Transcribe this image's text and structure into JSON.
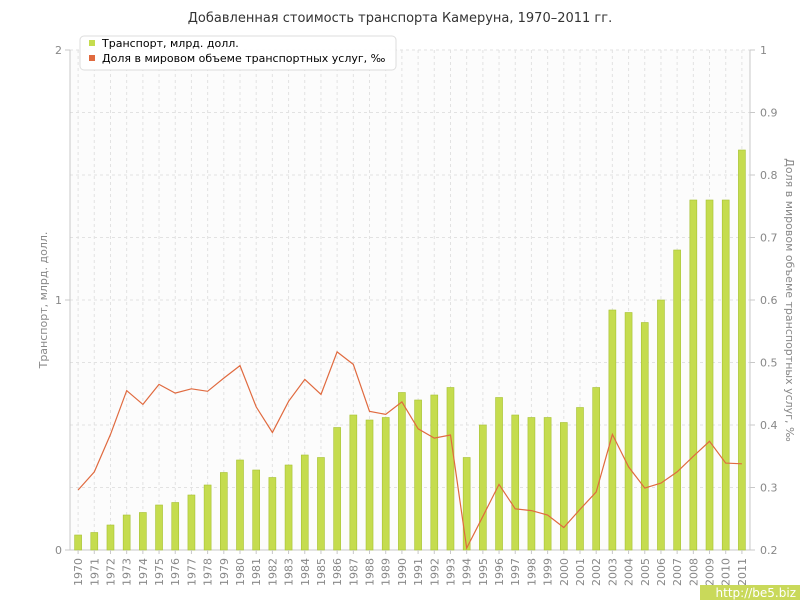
{
  "colors": {
    "bar": "#c5dc4e",
    "bar_edge": "#a6c132",
    "line": "#e06a3f",
    "grid": "#e2e2e2",
    "axis": "#c8c8c8",
    "watermark_bg": "#c9d95a"
  },
  "watermark": "http://be5.biz",
  "chart_data": {
    "type": "bar",
    "title": "Добавленная стоимость транспорта Камеруна, 1970–2011 гг.",
    "categories": [
      "1970",
      "1971",
      "1972",
      "1973",
      "1974",
      "1975",
      "1976",
      "1977",
      "1978",
      "1979",
      "1980",
      "1981",
      "1982",
      "1983",
      "1984",
      "1985",
      "1986",
      "1987",
      "1988",
      "1989",
      "1990",
      "1991",
      "1992",
      "1993",
      "1994",
      "1995",
      "1996",
      "1997",
      "1998",
      "1999",
      "2000",
      "2001",
      "2002",
      "2003",
      "2004",
      "2005",
      "2006",
      "2007",
      "2008",
      "2009",
      "2010",
      "2011"
    ],
    "ylabel_left": "Транспорт, млрд. долл.",
    "ylabel_right": "Доля в мировом объеме транспортных услуг, ‰",
    "ylim_left": [
      0,
      2
    ],
    "ylim_right": [
      0.2,
      1
    ],
    "yticks_left": [
      "0",
      "1",
      "2"
    ],
    "yticks_right": [
      "0.2",
      "0.3",
      "0.4",
      "0.5",
      "0.6",
      "0.7",
      "0.8",
      "0.9",
      "1"
    ],
    "grid": true,
    "legend_position": "top-left",
    "series": [
      {
        "name": "Транспорт, млрд. долл.",
        "type": "bar",
        "axis": "left",
        "values": [
          0.06,
          0.07,
          0.1,
          0.14,
          0.15,
          0.18,
          0.19,
          0.22,
          0.26,
          0.31,
          0.36,
          0.32,
          0.29,
          0.34,
          0.38,
          0.37,
          0.49,
          0.54,
          0.52,
          0.53,
          0.63,
          0.6,
          0.62,
          0.65,
          0.37,
          0.5,
          0.61,
          0.54,
          0.53,
          0.53,
          0.51,
          0.57,
          0.65,
          0.96,
          0.95,
          0.91,
          1.0,
          1.2,
          1.4,
          1.4,
          1.4,
          1.6
        ]
      },
      {
        "name": "Доля в мировом объеме транспортных услуг, ‰",
        "type": "line",
        "axis": "right",
        "values": [
          0.296,
          0.325,
          0.385,
          0.455,
          0.433,
          0.465,
          0.451,
          0.458,
          0.454,
          0.475,
          0.495,
          0.429,
          0.388,
          0.438,
          0.473,
          0.449,
          0.517,
          0.497,
          0.422,
          0.417,
          0.437,
          0.394,
          0.379,
          0.384,
          0.203,
          0.254,
          0.305,
          0.266,
          0.263,
          0.256,
          0.236,
          0.265,
          0.293,
          0.385,
          0.333,
          0.299,
          0.307,
          0.325,
          0.35,
          0.374,
          0.339,
          0.338
        ]
      }
    ]
  }
}
